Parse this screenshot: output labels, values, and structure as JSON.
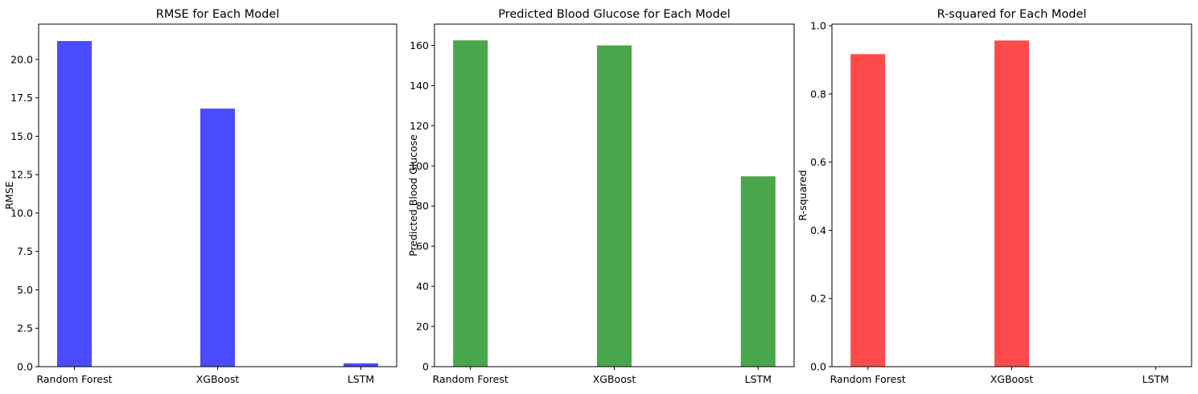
{
  "chart_data": [
    {
      "type": "bar",
      "title": "RMSE for Each Model",
      "xlabel": "",
      "ylabel": "RMSE",
      "categories": [
        "Random Forest",
        "XGBoost",
        "LSTM"
      ],
      "values": [
        21.2,
        16.8,
        0.22
      ],
      "ylim": [
        0,
        22.3
      ],
      "yticks": [
        0.0,
        2.5,
        5.0,
        7.5,
        10.0,
        12.5,
        15.0,
        17.5,
        20.0
      ],
      "ytick_labels": [
        "0.0",
        "2.5",
        "5.0",
        "7.5",
        "10.0",
        "12.5",
        "15.0",
        "17.5",
        "20.0"
      ],
      "color": "#4b4bff",
      "grid": false
    },
    {
      "type": "bar",
      "title": "Predicted Blood Glucose for Each Model",
      "xlabel": "",
      "ylabel": "Predicted Blood Glucose",
      "categories": [
        "Random Forest",
        "XGBoost",
        "LSTM"
      ],
      "values": [
        162.5,
        160.0,
        94.8
      ],
      "ylim": [
        0,
        170.6
      ],
      "yticks": [
        0,
        20,
        40,
        60,
        80,
        100,
        120,
        140,
        160
      ],
      "ytick_labels": [
        "0",
        "20",
        "40",
        "60",
        "80",
        "100",
        "120",
        "140",
        "160"
      ],
      "color": "#4aa64a",
      "grid": false
    },
    {
      "type": "bar",
      "title": "R-squared for Each Model",
      "xlabel": "",
      "ylabel": "R-squared",
      "categories": [
        "Random Forest",
        "XGBoost",
        "LSTM"
      ],
      "values": [
        0.917,
        0.957,
        0.0
      ],
      "ylim": [
        0,
        1.005
      ],
      "yticks": [
        0.0,
        0.2,
        0.4,
        0.6,
        0.8,
        1.0
      ],
      "ytick_labels": [
        "0.0",
        "0.2",
        "0.4",
        "0.6",
        "0.8",
        "1.0"
      ],
      "color": "#ff4b4b",
      "grid": false
    }
  ]
}
